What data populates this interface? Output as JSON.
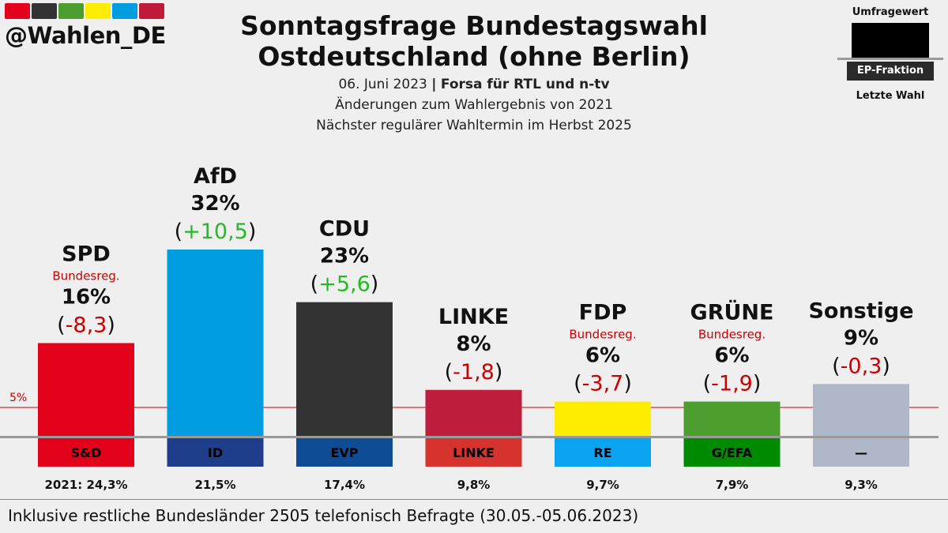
{
  "brand": {
    "handle": "@Wahlen_DE",
    "stripe_colors": [
      "#e3001b",
      "#333333",
      "#4c9e2e",
      "#ffed00",
      "#009ee0",
      "#c01a3a"
    ]
  },
  "header": {
    "title_line1": "Sonntagsfrage Bundestagswahl",
    "title_line2": "Ostdeutschland (ohne Berlin)",
    "date": "06. Juni 2023",
    "separator": "|",
    "institute": "Forsa für RTL und n-tv",
    "subtitle1": "Änderungen zum Wahlergebnis von 2021",
    "subtitle2": "Nächster regulärer Wahltermin im Herbst 2025"
  },
  "legend": {
    "top": "Umfragewert",
    "middle": "EP-Fraktion",
    "bottom": "Letzte Wahl"
  },
  "footer": {
    "note": "Inklusive restliche Bundesländer 2505 telefonisch Befragte (30.05.-05.06.2023)"
  },
  "chart_data": {
    "type": "bar",
    "threshold": {
      "value": 5,
      "label": "5%",
      "color": "#cc0000"
    },
    "ylim": [
      0,
      32
    ],
    "categories": [
      "SPD",
      "AfD",
      "CDU",
      "LINKE",
      "FDP",
      "GRÜNE",
      "Sonstige"
    ],
    "values": [
      16,
      32,
      23,
      8,
      6,
      6,
      9
    ],
    "value_labels": [
      "16%",
      "32%",
      "23%",
      "8%",
      "6%",
      "6%",
      "9%"
    ],
    "changes": [
      "-8,3",
      "+10,5",
      "+5,6",
      "-1,8",
      "-3,7",
      "-1,9",
      "-0,3"
    ],
    "govt_labels": [
      "Bundesreg.",
      "",
      "",
      "",
      "Bundesreg.",
      "Bundesreg.",
      ""
    ],
    "bar_colors": [
      "#e3001b",
      "#009ee0",
      "#333333",
      "#be1e3c",
      "#ffed00",
      "#4c9e2e",
      "#aeb8c8"
    ],
    "groups": [
      "S&D",
      "ID",
      "EVP",
      "LINKE",
      "RE",
      "G/EFA",
      "—"
    ],
    "group_colors": [
      "#e3001b",
      "#1e3d8a",
      "#0e4c96",
      "#d6332e",
      "#0aa4f0",
      "#008a00",
      "#aeb8c8"
    ],
    "group_text_colors": [
      "#000000",
      "#000000",
      "#000000",
      "#000000",
      "#000000",
      "#000000",
      "#000000"
    ],
    "last_election": [
      "2021: 24,3%",
      "21,5%",
      "17,4%",
      "9,8%",
      "9,7%",
      "7,9%",
      "9,3%"
    ],
    "positive_color": "#22bb22",
    "negative_color": "#cc0000"
  }
}
